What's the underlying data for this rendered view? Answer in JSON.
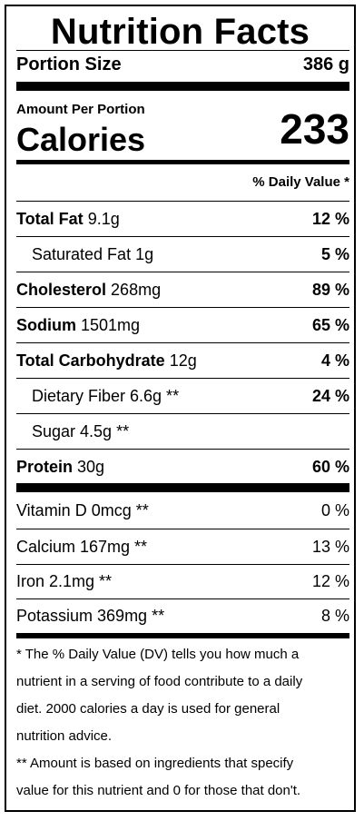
{
  "title": "Nutrition Facts",
  "portion": {
    "label": "Portion Size",
    "value": "386 g"
  },
  "calories": {
    "amount_label": "Amount Per Portion",
    "label": "Calories",
    "value": "233"
  },
  "dv_header": "% Daily Value *",
  "nutrients": [
    {
      "name": "Total Fat",
      "amount": "9.1g",
      "dv": "12 %"
    },
    {
      "name": "Saturated Fat 1g",
      "dv": "5 %"
    },
    {
      "name": "Cholesterol",
      "amount": "268mg",
      "dv": "89 %"
    },
    {
      "name": "Sodium",
      "amount": "1501mg",
      "dv": "65 %"
    },
    {
      "name": "Total Carbohydrate",
      "amount": "12g",
      "dv": "4 %"
    },
    {
      "name": "Dietary Fiber 6.6g **",
      "dv": "24 %"
    },
    {
      "name": "Sugar 4.5g **",
      "dv": ""
    },
    {
      "name": "Protein",
      "amount": "30g",
      "dv": "60 %"
    }
  ],
  "vitamins": [
    {
      "name": "Vitamin D 0mcg **",
      "dv": "0 %"
    },
    {
      "name": "Calcium 167mg **",
      "dv": "13 %"
    },
    {
      "name": "Iron 2.1mg **",
      "dv": "12 %"
    },
    {
      "name": "Potassium 369mg **",
      "dv": "8 %"
    }
  ],
  "footnotes": [
    "* The % Daily Value (DV) tells you how much a",
    "nutrient in a serving of food contribute to a daily",
    "diet. 2000 calories a day is used for general",
    "nutrition advice.",
    "** Amount is based on ingredients that specify",
    "value for this nutrient and 0 for those that don't."
  ]
}
